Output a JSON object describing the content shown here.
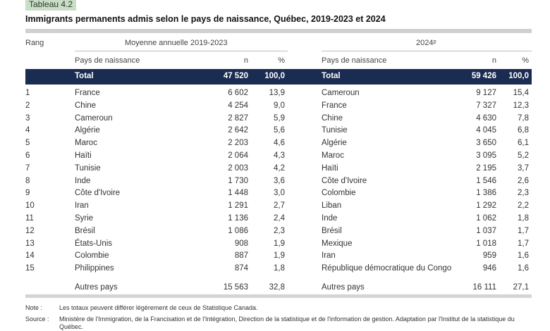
{
  "tag": "Tableau 4.2",
  "title": "Immigrants permanents admis selon le pays de naissance, Québec, 2019-2023 et 2024",
  "headers": {
    "rank": "Rang",
    "period_left": "Moyenne annuelle 2019-2023",
    "period_right": "2024ᵖ",
    "country": "Pays de naissance",
    "n": "n",
    "pct": "%"
  },
  "total": {
    "label": "Total",
    "left_n": "47 520",
    "left_pct": "100,0",
    "right_n": "59 426",
    "right_pct": "100,0"
  },
  "rows": [
    {
      "rank": "1",
      "lc": "France",
      "ln": "6 602",
      "lp": "13,9",
      "rc": "Cameroun",
      "rn": "9 127",
      "rp": "15,4"
    },
    {
      "rank": "2",
      "lc": "Chine",
      "ln": "4 254",
      "lp": "9,0",
      "rc": "France",
      "rn": "7 327",
      "rp": "12,3"
    },
    {
      "rank": "3",
      "lc": "Cameroun",
      "ln": "2 827",
      "lp": "5,9",
      "rc": "Chine",
      "rn": "4 630",
      "rp": "7,8"
    },
    {
      "rank": "4",
      "lc": "Algérie",
      "ln": "2 642",
      "lp": "5,6",
      "rc": "Tunisie",
      "rn": "4 045",
      "rp": "6,8"
    },
    {
      "rank": "5",
      "lc": "Maroc",
      "ln": "2 203",
      "lp": "4,6",
      "rc": "Algérie",
      "rn": "3 650",
      "rp": "6,1"
    },
    {
      "rank": "6",
      "lc": "Haïti",
      "ln": "2 064",
      "lp": "4,3",
      "rc": "Maroc",
      "rn": "3 095",
      "rp": "5,2"
    },
    {
      "rank": "7",
      "lc": "Tunisie",
      "ln": "2 003",
      "lp": "4,2",
      "rc": "Haïti",
      "rn": "2 195",
      "rp": "3,7"
    },
    {
      "rank": "8",
      "lc": "Inde",
      "ln": "1 730",
      "lp": "3,6",
      "rc": "Côte d'Ivoire",
      "rn": "1 546",
      "rp": "2,6"
    },
    {
      "rank": "9",
      "lc": "Côte d'Ivoire",
      "ln": "1 448",
      "lp": "3,0",
      "rc": "Colombie",
      "rn": "1 386",
      "rp": "2,3"
    },
    {
      "rank": "10",
      "lc": "Iran",
      "ln": "1 291",
      "lp": "2,7",
      "rc": "Liban",
      "rn": "1 292",
      "rp": "2,2"
    },
    {
      "rank": "11",
      "lc": "Syrie",
      "ln": "1 136",
      "lp": "2,4",
      "rc": "Inde",
      "rn": "1 062",
      "rp": "1,8"
    },
    {
      "rank": "12",
      "lc": "Brésil",
      "ln": "1 086",
      "lp": "2,3",
      "rc": "Brésil",
      "rn": "1 037",
      "rp": "1,7"
    },
    {
      "rank": "13",
      "lc": "États-Unis",
      "ln": "908",
      "lp": "1,9",
      "rc": "Mexique",
      "rn": "1 018",
      "rp": "1,7"
    },
    {
      "rank": "14",
      "lc": "Colombie",
      "ln": "887",
      "lp": "1,9",
      "rc": "Iran",
      "rn": "959",
      "rp": "1,6"
    },
    {
      "rank": "15",
      "lc": "Philippines",
      "ln": "874",
      "lp": "1,8",
      "rc": "République démocratique du Congo",
      "rn": "946",
      "rp": "1,6"
    }
  ],
  "other": {
    "label": "Autres pays",
    "left_n": "15 563",
    "left_pct": "32,8",
    "right_n": "16 111",
    "right_pct": "27,1"
  },
  "notes": {
    "note_label": "Note :",
    "note_text": "Les totaux peuvent différer légèrement de ceux de Statistique Canada.",
    "source_label": "Source :",
    "source_text": "Ministère de l'Immigration, de la Francisation et de l'Intégration, Direction de la statistique et de l'information de gestion. Adaptation par l'Institut de la statistique du Québec."
  }
}
